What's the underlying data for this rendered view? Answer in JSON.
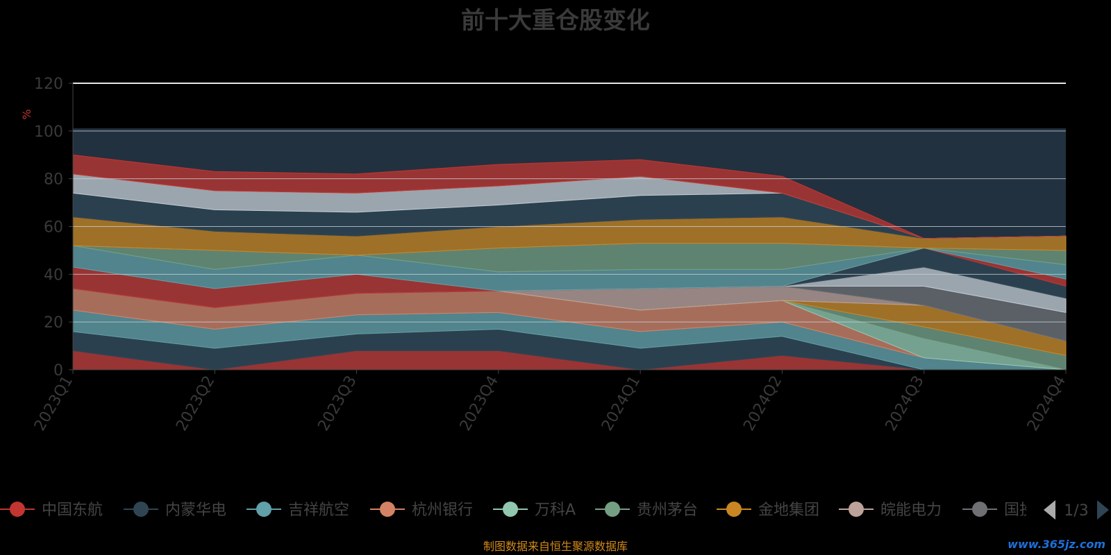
{
  "title": "前十大重仓股变化",
  "source_note": "制图数据来自恒生聚源数据库",
  "watermark": "www.365jz.com",
  "legend_page": "1/3",
  "chart_data": {
    "type": "area",
    "stacked": true,
    "title": "前十大重仓股变化",
    "ylabel": "%",
    "xlabel": "",
    "ylim": [
      0,
      120
    ],
    "yticks": [
      0,
      20,
      40,
      60,
      80,
      100,
      120
    ],
    "grid": true,
    "legend_position": "bottom",
    "x": [
      "2023Q1",
      "2023Q2",
      "2023Q3",
      "2023Q4",
      "2024Q1",
      "2024Q2",
      "2024Q3",
      "2024Q4"
    ],
    "series": [
      {
        "name": "中国东航",
        "color": "#c23531",
        "values": [
          8,
          0,
          8,
          8,
          0,
          6,
          0,
          0
        ]
      },
      {
        "name": "内蒙华电",
        "color": "#2f4554",
        "values": [
          8,
          9,
          7,
          9,
          9,
          8,
          0,
          0
        ]
      },
      {
        "name": "吉祥航空",
        "color": "#61a0a8",
        "values": [
          9,
          8,
          8,
          7,
          7,
          6,
          5,
          0
        ]
      },
      {
        "name": "杭州银行",
        "color": "#d48265",
        "values": [
          9,
          9,
          9,
          9,
          9,
          9,
          0,
          0
        ]
      },
      {
        "name": "万科A",
        "color": "#91c7ae",
        "values": [
          0,
          0,
          0,
          0,
          0,
          0,
          8,
          0
        ]
      },
      {
        "name": "贵州茅台",
        "color": "#749f83",
        "values": [
          0,
          0,
          0,
          0,
          0,
          0,
          5,
          6
        ]
      },
      {
        "name": "金地集团",
        "color": "#ca8622",
        "values": [
          0,
          0,
          0,
          0,
          0,
          0,
          9,
          6
        ]
      },
      {
        "name": "皖能电力",
        "color": "#bda29a",
        "values": [
          0,
          0,
          0,
          0,
          9,
          6,
          0,
          0
        ]
      },
      {
        "name": "国投",
        "color": "#6e7074",
        "values": [
          0,
          0,
          0,
          0,
          0,
          0,
          8,
          12
        ]
      },
      {
        "name": "",
        "color": "#546570",
        "values": [
          0,
          0,
          0,
          0,
          0,
          0,
          0,
          0
        ]
      },
      {
        "name": "",
        "color": "#c4ccd3",
        "values": [
          0,
          0,
          0,
          0,
          0,
          0,
          8,
          6
        ]
      },
      {
        "name": "",
        "color": "#2f4554",
        "values": [
          0,
          0,
          0,
          0,
          0,
          0,
          8,
          5
        ]
      },
      {
        "name": "",
        "color": "#c23531",
        "values": [
          9,
          8,
          8,
          0,
          0,
          0,
          0,
          3
        ]
      },
      {
        "name": "",
        "color": "#61a0a8",
        "values": [
          9,
          8,
          8,
          8,
          8,
          7,
          0,
          6
        ]
      },
      {
        "name": "",
        "color": "#749f83",
        "values": [
          0,
          8,
          0,
          10,
          11,
          11,
          0,
          6
        ]
      },
      {
        "name": "",
        "color": "#ca8622",
        "values": [
          12,
          8,
          8,
          9,
          10,
          11,
          4,
          6
        ]
      },
      {
        "name": "",
        "color": "#2f4554",
        "values": [
          10,
          9,
          10,
          9,
          10,
          10,
          0,
          0
        ]
      },
      {
        "name": "",
        "color": "#c4ccd3",
        "values": [
          8,
          8,
          8,
          8,
          8,
          0,
          0,
          0
        ]
      },
      {
        "name": "",
        "color": "#c23531",
        "values": [
          8,
          8,
          8,
          9,
          7,
          7,
          0,
          0
        ]
      }
    ],
    "legend_visible": [
      "中国东航",
      "内蒙华电",
      "吉祥航空",
      "杭州银行",
      "万科A",
      "贵州茅台",
      "金地集团",
      "皖能电力",
      "国投"
    ]
  }
}
